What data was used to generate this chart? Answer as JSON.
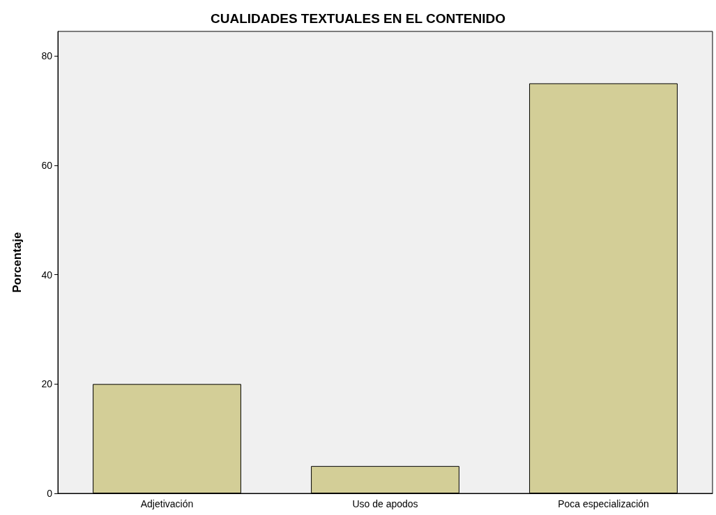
{
  "chart_data": {
    "type": "bar",
    "title": "CUALIDADES TEXTUALES EN EL CONTENIDO",
    "ylabel": "Porcentaje",
    "categories": [
      "Adjetivación",
      "Uso de apodos",
      "Poca especialización"
    ],
    "values": [
      20,
      5,
      75
    ],
    "color": "#d3ce97",
    "ylim": [
      0,
      84.5
    ],
    "yticks": [
      0,
      20,
      40,
      60,
      80
    ],
    "grid": false
  }
}
